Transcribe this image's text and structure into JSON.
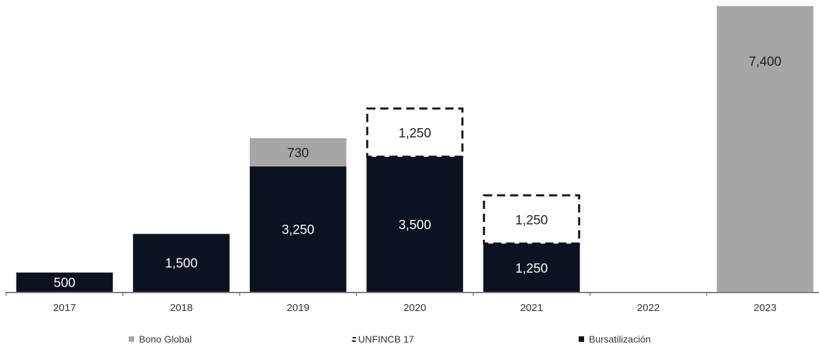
{
  "chart_data": {
    "type": "bar",
    "stacked": true,
    "categories": [
      "2017",
      "2018",
      "2019",
      "2020",
      "2021",
      "2022",
      "2023"
    ],
    "series": [
      {
        "name": "Bursatilización",
        "color": "#0b1220",
        "style": "solid",
        "values": [
          500,
          1500,
          3250,
          3500,
          1250,
          0,
          0
        ]
      },
      {
        "name": "Bono Global",
        "color": "#a6a6a6",
        "style": "solid",
        "values": [
          0,
          0,
          730,
          0,
          0,
          0,
          7400
        ]
      },
      {
        "name": "UNFINCB 17",
        "color": "#ffffff",
        "style": "dashed",
        "values": [
          0,
          0,
          0,
          1250,
          1250,
          0,
          0
        ]
      }
    ],
    "data_labels": [
      [
        "500",
        "1,500",
        "3,250",
        "3,500",
        "1,250",
        "",
        ""
      ],
      [
        "",
        "",
        "730",
        "",
        "",
        "",
        "7,400"
      ],
      [
        "",
        "",
        "",
        "1,250",
        "1,250",
        "",
        ""
      ]
    ],
    "ylim": [
      0,
      7400
    ],
    "grid": false,
    "legend_position": "bottom"
  }
}
